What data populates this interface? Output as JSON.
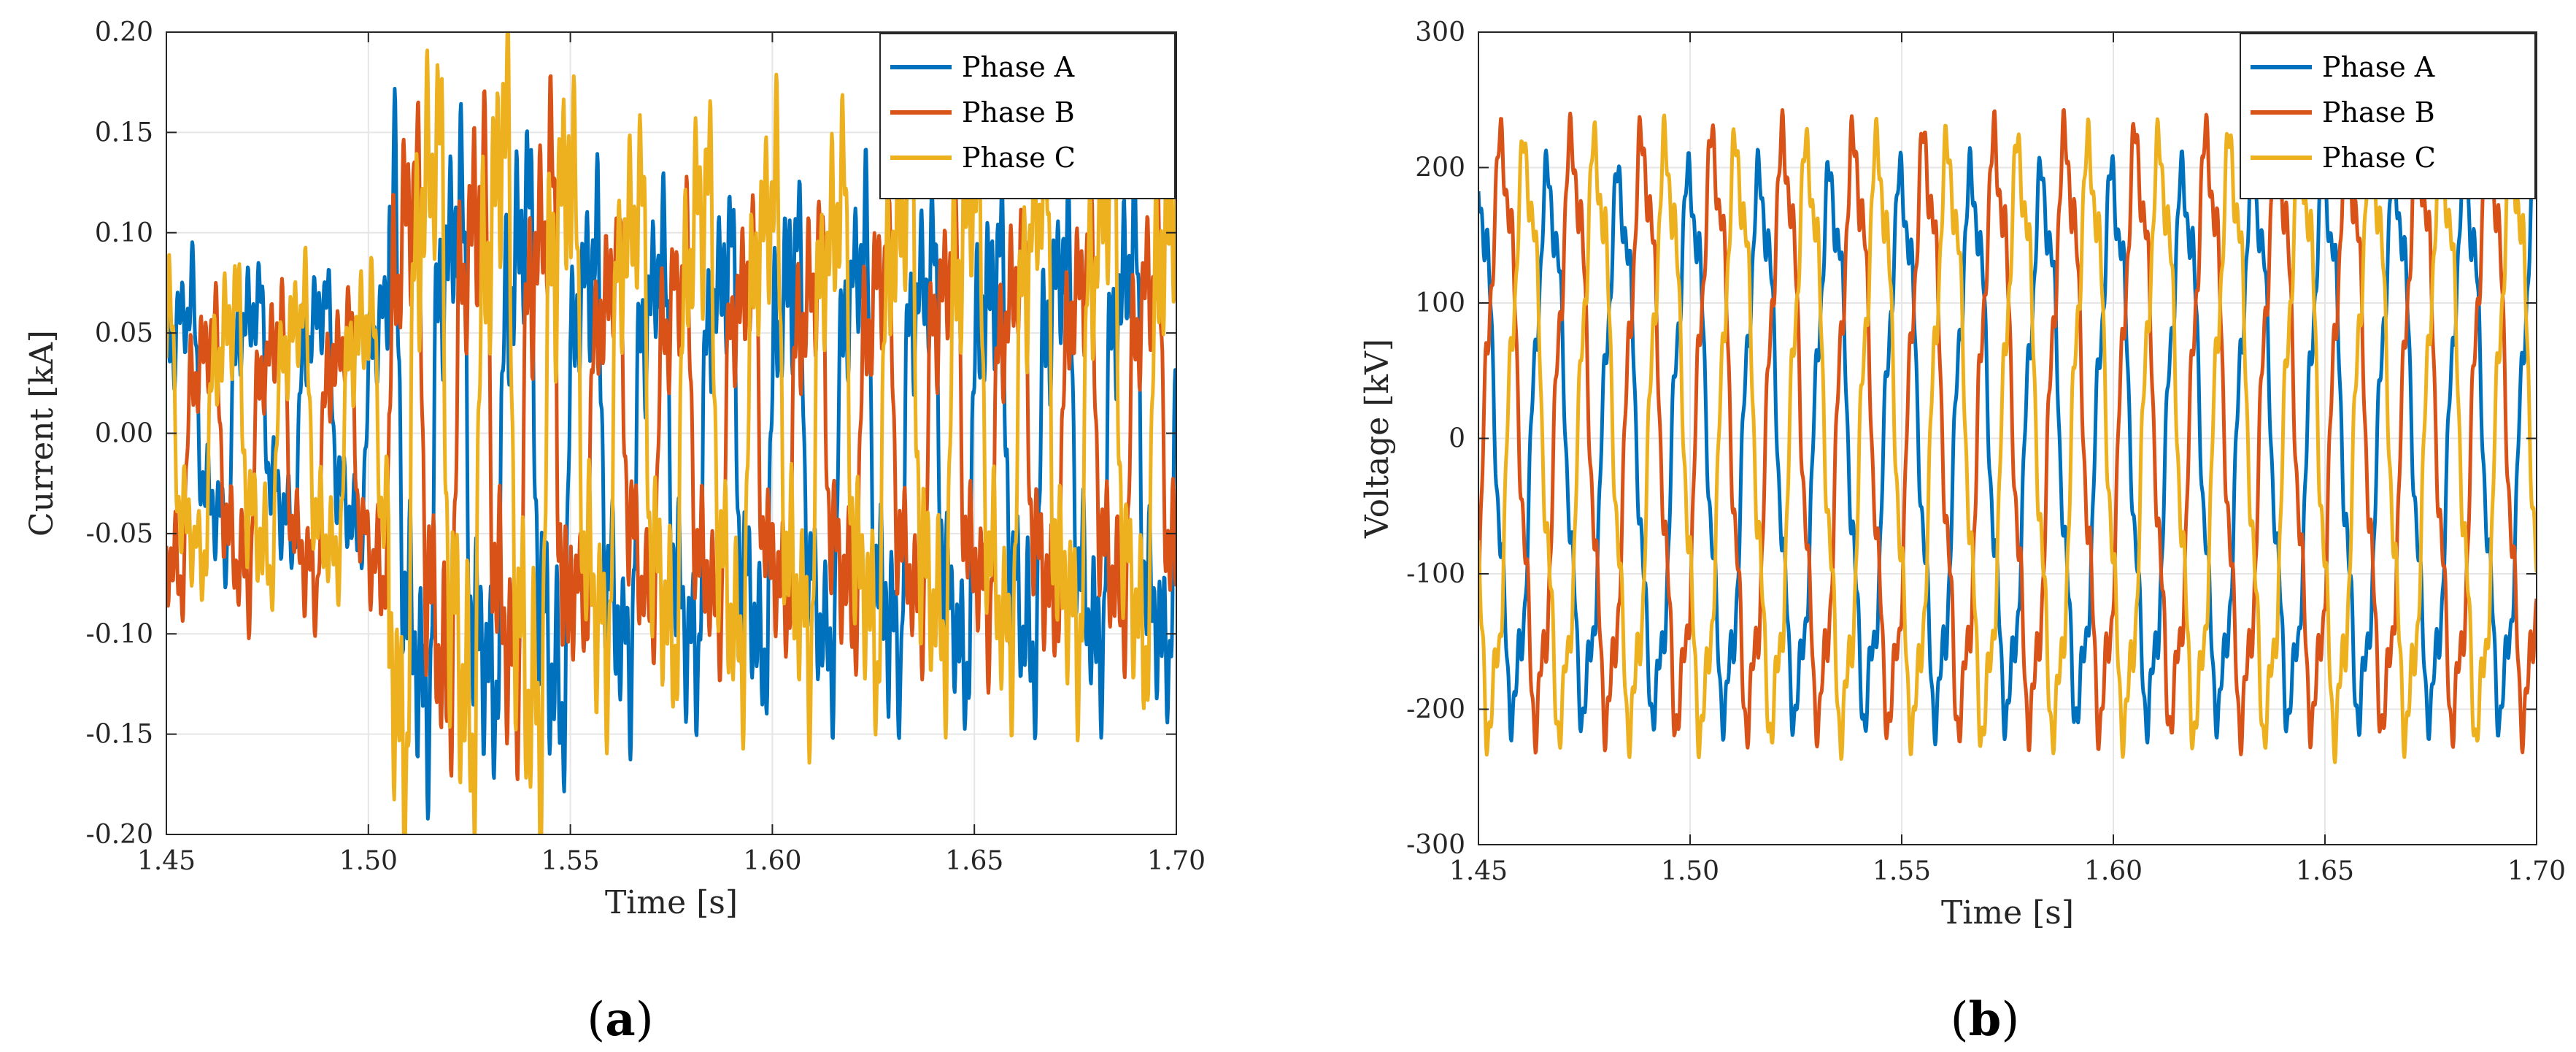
{
  "chart_data": [
    {
      "type": "line",
      "panel_label": "a",
      "title": "",
      "xlabel": "Time [s]",
      "ylabel": "Current [kA]",
      "xlim": [
        1.45,
        1.7
      ],
      "ylim": [
        -0.2,
        0.2
      ],
      "xticks": [
        1.45,
        1.5,
        1.55,
        1.6,
        1.65,
        1.7
      ],
      "xtick_labels": [
        "1.45",
        "1.50",
        "1.55",
        "1.60",
        "1.65",
        "1.70"
      ],
      "yticks": [
        -0.2,
        -0.15,
        -0.1,
        -0.05,
        0.0,
        0.05,
        0.1,
        0.15,
        0.2
      ],
      "ytick_labels": [
        "-0.20",
        "-0.15",
        "-0.10",
        "-0.05",
        "0.00",
        "0.05",
        "0.10",
        "0.15",
        "0.20"
      ],
      "grid": true,
      "legend_position": "top-right",
      "series": [
        {
          "name": "Phase A",
          "color": "#0072BD",
          "model": {
            "segments": [
              {
                "t_end": 1.505,
                "amp": 0.06,
                "offset": 0.01
              },
              {
                "t_end": 1.55,
                "amp": 0.13,
                "offset": -0.01
              },
              {
                "t_end": 1.7,
                "amp": 0.105,
                "offset": -0.01
              }
            ],
            "phase_deg": 0,
            "h3_ratio": 0.3,
            "h5_ratio": 0.3,
            "hf_ratio": 0.22,
            "noise_ratio": 0.1,
            "seed": 11
          }
        },
        {
          "name": "Phase B",
          "color": "#D95319",
          "model": {
            "segments": [
              {
                "t_end": 1.505,
                "amp": 0.065,
                "offset": -0.01
              },
              {
                "t_end": 1.55,
                "amp": 0.13,
                "offset": 0.0
              },
              {
                "t_end": 1.7,
                "amp": 0.09,
                "offset": 0.0
              }
            ],
            "phase_deg": -120,
            "h3_ratio": 0.3,
            "h5_ratio": 0.3,
            "hf_ratio": 0.22,
            "noise_ratio": 0.1,
            "seed": 23
          }
        },
        {
          "name": "Phase C",
          "color": "#EDB120",
          "model": {
            "segments": [
              {
                "t_end": 1.505,
                "amp": 0.065,
                "offset": 0.0
              },
              {
                "t_end": 1.55,
                "amp": 0.155,
                "offset": 0.0
              },
              {
                "t_end": 1.7,
                "amp": 0.12,
                "offset": 0.01
              }
            ],
            "phase_deg": 120,
            "h3_ratio": 0.3,
            "h5_ratio": 0.3,
            "hf_ratio": 0.22,
            "noise_ratio": 0.1,
            "seed": 37
          }
        }
      ]
    },
    {
      "type": "line",
      "panel_label": "b",
      "title": "",
      "xlabel": "Time [s]",
      "ylabel": "Voltage [kV]",
      "xlim": [
        1.45,
        1.7
      ],
      "ylim": [
        -300,
        300
      ],
      "xticks": [
        1.45,
        1.5,
        1.55,
        1.6,
        1.65,
        1.7
      ],
      "xtick_labels": [
        "1.45",
        "1.50",
        "1.55",
        "1.60",
        "1.65",
        "1.70"
      ],
      "yticks": [
        -300,
        -200,
        -100,
        0,
        100,
        200,
        300
      ],
      "ytick_labels": [
        "-300",
        "-200",
        "-100",
        "0",
        "100",
        "200",
        "300"
      ],
      "grid": true,
      "legend_position": "top-right",
      "series": [
        {
          "name": "Phase A",
          "color": "#0072BD",
          "model": {
            "segments": [
              {
                "t_end": 1.7,
                "amp": 190,
                "offset": -5
              }
            ],
            "phase_deg": 90,
            "h3_ratio": 0.0,
            "h5_ratio": 0.12,
            "hf_ratio": 0.06,
            "noise_ratio": 0.02,
            "seed": 5
          }
        },
        {
          "name": "Phase B",
          "color": "#D95319",
          "model": {
            "segments": [
              {
                "t_end": 1.7,
                "amp": 205,
                "offset": 5
              }
            ],
            "phase_deg": -30,
            "h3_ratio": 0.0,
            "h5_ratio": 0.12,
            "hf_ratio": 0.06,
            "noise_ratio": 0.02,
            "seed": 7
          }
        },
        {
          "name": "Phase C",
          "color": "#EDB120",
          "model": {
            "segments": [
              {
                "t_end": 1.7,
                "amp": 205,
                "offset": 0
              }
            ],
            "phase_deg": 210,
            "h3_ratio": 0.0,
            "h5_ratio": 0.12,
            "hf_ratio": 0.06,
            "noise_ratio": 0.02,
            "seed": 9
          }
        }
      ]
    }
  ],
  "captions": [
    {
      "open": "(",
      "label": "a",
      "close": ")"
    },
    {
      "open": "(",
      "label": "b",
      "close": ")"
    }
  ]
}
